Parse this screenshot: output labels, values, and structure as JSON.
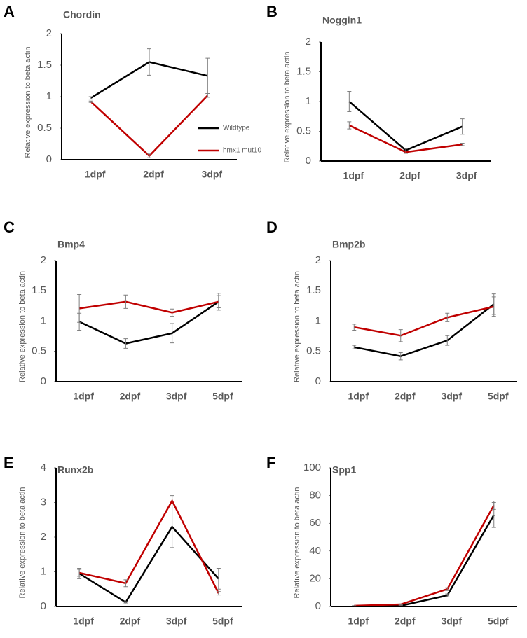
{
  "chart_data": [
    {
      "type": "line",
      "panel": "A",
      "title": "Chordin",
      "y_label": "Relative expression to beta actin",
      "categories": [
        "1dpf",
        "2dpf",
        "3dpf"
      ],
      "ylim": [
        0,
        2
      ],
      "yticks": [
        0,
        0.5,
        1,
        1.5,
        2
      ],
      "legend": "right",
      "series": [
        {
          "name": "Wildtype",
          "color": "#000000",
          "values": [
            0.98,
            1.55,
            1.33
          ],
          "errors": [
            0.02,
            0.21,
            0.28
          ]
        },
        {
          "name": "hmx1 mut10",
          "color": "#c00000",
          "values": [
            0.92,
            0.06,
            1.02
          ],
          "errors": [
            0.01,
            0.03,
            0.03
          ]
        }
      ]
    },
    {
      "type": "line",
      "panel": "B",
      "title": "Noggin1",
      "y_label": "Relative expression to beta actin",
      "categories": [
        "1dpf",
        "2dpf",
        "3dpf"
      ],
      "ylim": [
        0,
        2
      ],
      "yticks": [
        0,
        0.5,
        1,
        1.5,
        2
      ],
      "series": [
        {
          "color": "#000000",
          "values": [
            1.0,
            0.18,
            0.58
          ],
          "errors": [
            0.17,
            0.03,
            0.13
          ]
        },
        {
          "color": "#c00000",
          "values": [
            0.6,
            0.15,
            0.28
          ],
          "errors": [
            0.06,
            0.02,
            0.02
          ]
        }
      ]
    },
    {
      "type": "line",
      "panel": "C",
      "title": "Bmp4",
      "y_label": "Relative expression to beta actin",
      "categories": [
        "1dpf",
        "2dpf",
        "3dpf",
        "5dpf"
      ],
      "ylim": [
        0,
        2
      ],
      "yticks": [
        0,
        0.5,
        1,
        1.5,
        2
      ],
      "series": [
        {
          "color": "#000000",
          "values": [
            0.99,
            0.63,
            0.8,
            1.32
          ],
          "errors": [
            0.14,
            0.08,
            0.16,
            0.1
          ]
        },
        {
          "color": "#c00000",
          "values": [
            1.21,
            1.32,
            1.14,
            1.32
          ],
          "errors": [
            0.23,
            0.11,
            0.06,
            0.14
          ]
        }
      ]
    },
    {
      "type": "line",
      "panel": "D",
      "title": "Bmp2b",
      "y_label": "Relative expression to beta actin",
      "categories": [
        "1dpf",
        "2dpf",
        "3dpf",
        "5dpf"
      ],
      "ylim": [
        0,
        2
      ],
      "yticks": [
        0,
        0.5,
        1,
        1.5,
        2
      ],
      "series": [
        {
          "color": "#000000",
          "values": [
            0.57,
            0.42,
            0.68,
            1.28
          ],
          "errors": [
            0.03,
            0.06,
            0.08,
            0.17
          ]
        },
        {
          "color": "#c00000",
          "values": [
            0.9,
            0.76,
            1.06,
            1.24
          ],
          "errors": [
            0.05,
            0.1,
            0.07,
            0.16
          ]
        }
      ]
    },
    {
      "type": "line",
      "panel": "E",
      "title": "Runx2b",
      "y_label": "Relative expression to beta actin",
      "categories": [
        "1dpf",
        "2dpf",
        "3dpf",
        "5dpf"
      ],
      "ylim": [
        0,
        4
      ],
      "yticks": [
        0,
        1,
        2,
        3,
        4
      ],
      "series": [
        {
          "color": "#000000",
          "values": [
            0.95,
            0.12,
            2.3,
            0.8
          ],
          "errors": [
            0.15,
            0.02,
            0.6,
            0.3
          ]
        },
        {
          "color": "#c00000",
          "values": [
            0.97,
            0.67,
            3.05,
            0.38
          ],
          "errors": [
            0.1,
            0.1,
            0.15,
            0.05
          ]
        }
      ]
    },
    {
      "type": "line",
      "panel": "F",
      "title": "Spp1",
      "y_label": "Relative expression to beta actin",
      "categories": [
        "1dpf",
        "2dpf",
        "3dpf",
        "5dpf"
      ],
      "ylim": [
        0,
        100
      ],
      "yticks": [
        0,
        20,
        40,
        60,
        80,
        100
      ],
      "series": [
        {
          "color": "#000000",
          "values": [
            0.3,
            0.5,
            8,
            66
          ],
          "errors": [
            0.05,
            0.1,
            1,
            9
          ]
        },
        {
          "color": "#c00000",
          "values": [
            0.5,
            1.5,
            12.5,
            73
          ],
          "errors": [
            0.1,
            0.3,
            1,
            3
          ]
        }
      ]
    }
  ]
}
